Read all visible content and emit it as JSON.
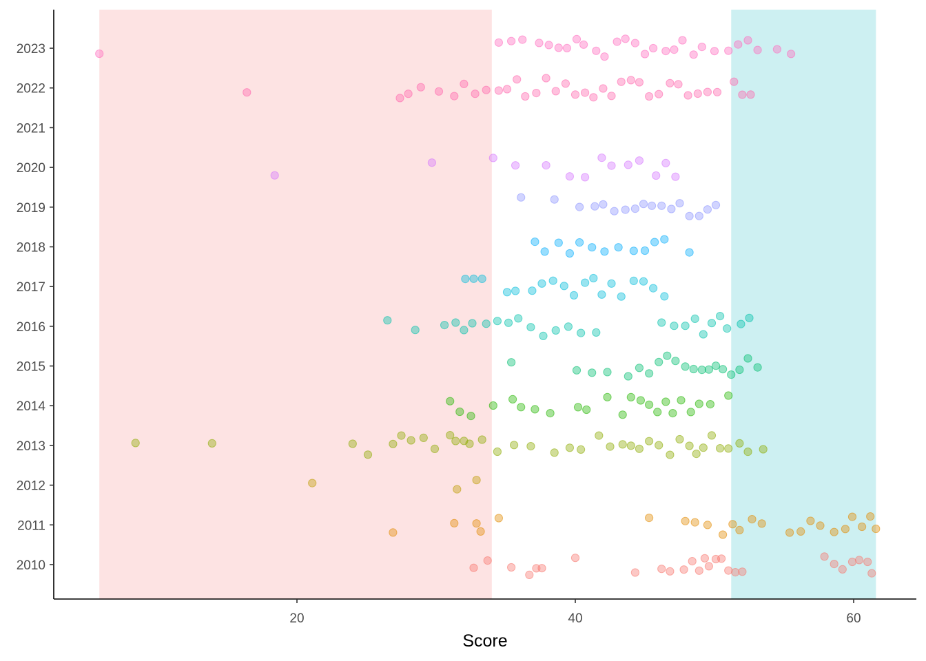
{
  "chart_data": {
    "type": "scatter",
    "xlabel": "Score",
    "ylabel": "",
    "title": "",
    "xlim": [
      5,
      62
    ],
    "x_ticks": [
      20,
      40,
      60
    ],
    "y_categories": [
      "2010",
      "2011",
      "2012",
      "2013",
      "2014",
      "2015",
      "2016",
      "2017",
      "2018",
      "2019",
      "2020",
      "2021",
      "2022",
      "2023"
    ],
    "grid": false,
    "legend": "none",
    "shaded_regions": [
      {
        "x_from": 5.8,
        "x_to": 34,
        "color": "#fde3e3"
      },
      {
        "x_from": 51.2,
        "x_to": 61.6,
        "color": "#cdf0f2"
      }
    ],
    "point_opacity": 0.4,
    "series": [
      {
        "category": "2010",
        "color": "#F8766D",
        "x": [
          32.7,
          33.7,
          35.4,
          36.7,
          37.2,
          37.6,
          40.0,
          44.3,
          46.2,
          46.8,
          47.8,
          48.4,
          48.9,
          49.3,
          49.6,
          50.1,
          50.5,
          51.0,
          51.5,
          52.0,
          57.9,
          58.6,
          59.2,
          59.9,
          60.4,
          61.0,
          61.3
        ]
      },
      {
        "category": "2011",
        "color": "#E18A00",
        "x": [
          26.9,
          31.3,
          32.9,
          33.2,
          34.5,
          45.3,
          47.9,
          48.6,
          49.5,
          50.6,
          51.3,
          51.8,
          52.7,
          53.4,
          55.4,
          56.2,
          56.9,
          57.6,
          58.6,
          59.4,
          59.9,
          60.6,
          61.2,
          61.6
        ]
      },
      {
        "category": "2012",
        "color": "#BE9C00",
        "x": [
          21.1,
          31.5,
          32.9
        ]
      },
      {
        "category": "2013",
        "color": "#8CAB00",
        "x": [
          8.4,
          13.9,
          24.0,
          25.1,
          26.9,
          27.5,
          28.2,
          29.1,
          29.9,
          31.0,
          31.4,
          32.0,
          32.4,
          33.3,
          34.4,
          35.6,
          36.8,
          38.5,
          39.6,
          40.4,
          41.7,
          42.5,
          43.4,
          44.0,
          44.6,
          45.3,
          46.0,
          46.8,
          47.5,
          48.2,
          48.7,
          49.2,
          49.8,
          50.4,
          51.0,
          51.8,
          52.4,
          53.5
        ]
      },
      {
        "category": "2014",
        "color": "#24B700",
        "x": [
          31.0,
          31.7,
          32.5,
          34.1,
          35.5,
          36.1,
          37.1,
          38.2,
          40.2,
          40.8,
          42.3,
          43.4,
          44.0,
          44.7,
          45.3,
          45.9,
          46.5,
          47.0,
          47.6,
          48.3,
          48.9,
          49.7,
          51.0
        ]
      },
      {
        "category": "2015",
        "color": "#00BE70",
        "x": [
          35.4,
          40.1,
          41.2,
          42.3,
          43.8,
          44.6,
          45.3,
          46.0,
          46.6,
          47.2,
          47.9,
          48.5,
          49.1,
          49.6,
          50.1,
          50.6,
          51.2,
          51.8,
          52.4,
          53.1
        ]
      },
      {
        "category": "2016",
        "color": "#00C1AB",
        "x": [
          26.5,
          28.5,
          30.6,
          31.4,
          32.0,
          32.6,
          33.6,
          34.4,
          35.2,
          35.9,
          36.8,
          37.7,
          38.6,
          39.5,
          40.4,
          41.5,
          46.2,
          47.1,
          47.9,
          48.6,
          49.2,
          49.8,
          50.4,
          50.9,
          51.9,
          52.5
        ]
      },
      {
        "category": "2017",
        "color": "#00BBDA",
        "x": [
          32.1,
          32.7,
          33.3,
          35.1,
          35.7,
          36.9,
          37.6,
          38.4,
          39.2,
          39.9,
          40.7,
          41.3,
          41.9,
          42.6,
          43.3,
          44.2,
          44.9,
          45.6,
          46.4
        ]
      },
      {
        "category": "2018",
        "color": "#00ACFC",
        "x": [
          37.1,
          37.8,
          38.8,
          39.6,
          40.3,
          41.2,
          42.1,
          43.1,
          44.2,
          45.0,
          45.7,
          46.4,
          48.2
        ]
      },
      {
        "category": "2019",
        "color": "#8B93FF",
        "x": [
          36.1,
          38.5,
          40.3,
          41.4,
          42.0,
          42.8,
          43.6,
          44.3,
          44.9,
          45.5,
          46.2,
          46.9,
          47.5,
          48.2,
          48.9,
          49.5,
          50.1
        ]
      },
      {
        "category": "2020",
        "color": "#D575FE",
        "x": [
          18.4,
          29.7,
          34.1,
          35.7,
          37.9,
          39.6,
          40.7,
          41.9,
          42.6,
          43.8,
          44.6,
          45.8,
          46.5,
          47.2
        ]
      },
      {
        "category": "2021",
        "color": "#F962DD",
        "x": []
      },
      {
        "category": "2022",
        "color": "#FF65AC",
        "x": [
          16.4,
          27.4,
          28.0,
          28.9,
          30.2,
          31.3,
          32.0,
          32.8,
          33.6,
          34.5,
          35.1,
          35.8,
          36.4,
          37.2,
          37.9,
          38.6,
          39.3,
          40.0,
          40.7,
          41.3,
          42.0,
          42.6,
          43.3,
          44.0,
          44.6,
          45.3,
          46.0,
          46.8,
          47.4,
          48.1,
          48.8,
          49.5,
          50.2,
          51.4,
          52.0,
          52.6
        ]
      },
      {
        "category": "2023",
        "color": "#FF69BE",
        "x": [
          5.8,
          34.5,
          35.4,
          36.2,
          37.4,
          38.1,
          38.8,
          39.4,
          40.1,
          40.6,
          41.5,
          42.1,
          43.0,
          43.6,
          44.3,
          45.0,
          45.6,
          46.5,
          47.1,
          47.7,
          48.5,
          49.1,
          50.0,
          51.0,
          51.7,
          52.4,
          53.1,
          54.5,
          55.5
        ]
      }
    ]
  }
}
